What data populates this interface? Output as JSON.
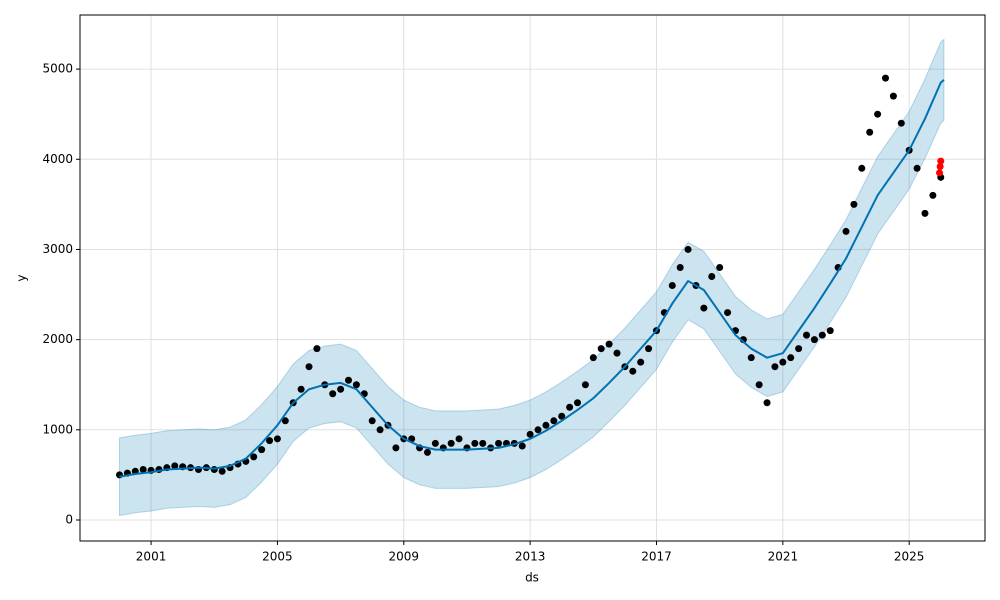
{
  "chart_data": {
    "type": "forecast",
    "xlabel": "ds",
    "ylabel": "y",
    "xlim": [
      1998.75,
      2027.4
    ],
    "ylim": [
      -233,
      5600
    ],
    "xticks": [
      2001,
      2005,
      2009,
      2013,
      2017,
      2021,
      2025
    ],
    "yticks": [
      0,
      1000,
      2000,
      3000,
      4000,
      5000
    ],
    "grid": true,
    "forecast": {
      "color": "#0072b2",
      "band_color": "#0072b2",
      "x": [
        2000,
        2000.5,
        2001,
        2001.5,
        2002,
        2002.5,
        2003,
        2003.5,
        2004,
        2004.5,
        2005,
        2005.5,
        2006,
        2006.5,
        2007,
        2007.5,
        2008,
        2008.5,
        2009,
        2009.5,
        2010,
        2010.5,
        2011,
        2011.5,
        2012,
        2012.5,
        2013,
        2013.5,
        2014,
        2014.5,
        2015,
        2015.5,
        2016,
        2016.5,
        2017,
        2017.5,
        2018,
        2018.5,
        2019,
        2019.5,
        2020,
        2020.5,
        2021,
        2021.5,
        2022,
        2022.5,
        2023,
        2023.5,
        2024,
        2024.5,
        2025,
        2025.5,
        2026,
        2026.1
      ],
      "values": [
        480,
        510,
        530,
        560,
        570,
        580,
        570,
        600,
        680,
        850,
        1050,
        1300,
        1450,
        1500,
        1520,
        1450,
        1250,
        1050,
        900,
        820,
        780,
        780,
        780,
        790,
        800,
        840,
        900,
        990,
        1100,
        1220,
        1350,
        1520,
        1700,
        1900,
        2100,
        2400,
        2650,
        2550,
        2300,
        2050,
        1900,
        1800,
        1850,
        2100,
        2350,
        2620,
        2900,
        3250,
        3600,
        3850,
        4100,
        4450,
        4850,
        4880
      ],
      "lower": [
        50,
        80,
        100,
        130,
        140,
        150,
        140,
        170,
        250,
        420,
        620,
        870,
        1020,
        1070,
        1090,
        1020,
        820,
        620,
        470,
        390,
        350,
        350,
        350,
        360,
        370,
        410,
        470,
        560,
        670,
        790,
        920,
        1090,
        1270,
        1470,
        1670,
        1970,
        2220,
        2120,
        1870,
        1620,
        1470,
        1370,
        1420,
        1670,
        1920,
        2190,
        2470,
        2820,
        3170,
        3420,
        3670,
        4010,
        4400,
        4430
      ],
      "upper": [
        910,
        940,
        960,
        990,
        1000,
        1010,
        1000,
        1030,
        1110,
        1280,
        1480,
        1730,
        1880,
        1930,
        1950,
        1880,
        1680,
        1480,
        1330,
        1250,
        1210,
        1210,
        1210,
        1220,
        1230,
        1270,
        1330,
        1420,
        1530,
        1650,
        1780,
        1950,
        2130,
        2330,
        2530,
        2830,
        3080,
        2980,
        2730,
        2480,
        2330,
        2230,
        2280,
        2530,
        2780,
        3050,
        3330,
        3680,
        4030,
        4280,
        4530,
        4890,
        5300,
        5330
      ]
    },
    "points": {
      "color": "#000000",
      "x": [
        2000,
        2000.25,
        2000.5,
        2000.75,
        2001,
        2001.25,
        2001.5,
        2001.75,
        2002,
        2002.25,
        2002.5,
        2002.75,
        2003,
        2003.25,
        2003.5,
        2003.75,
        2004,
        2004.25,
        2004.5,
        2004.75,
        2005,
        2005.25,
        2005.5,
        2005.75,
        2006,
        2006.25,
        2006.5,
        2006.75,
        2007,
        2007.25,
        2007.5,
        2007.75,
        2008,
        2008.25,
        2008.5,
        2008.75,
        2009,
        2009.25,
        2009.5,
        2009.75,
        2010,
        2010.25,
        2010.5,
        2010.75,
        2011,
        2011.25,
        2011.5,
        2011.75,
        2012,
        2012.25,
        2012.5,
        2012.75,
        2013,
        2013.25,
        2013.5,
        2013.75,
        2014,
        2014.25,
        2014.5,
        2014.75,
        2015,
        2015.25,
        2015.5,
        2015.75,
        2016,
        2016.25,
        2016.5,
        2016.75,
        2017,
        2017.25,
        2017.5,
        2017.75,
        2018,
        2018.25,
        2018.5,
        2018.75,
        2019,
        2019.25,
        2019.5,
        2019.75,
        2020,
        2020.25,
        2020.5,
        2020.75,
        2021,
        2021.25,
        2021.5,
        2021.75,
        2022,
        2022.25,
        2022.5,
        2022.75,
        2023,
        2023.25,
        2023.5,
        2023.75,
        2024,
        2024.25,
        2024.5,
        2024.75,
        2025,
        2025.25,
        2025.5,
        2025.75,
        2026
      ],
      "y": [
        500,
        520,
        540,
        560,
        550,
        560,
        580,
        600,
        590,
        580,
        560,
        580,
        560,
        540,
        580,
        620,
        650,
        700,
        780,
        880,
        900,
        1100,
        1300,
        1450,
        1700,
        1900,
        1500,
        1400,
        1450,
        1550,
        1500,
        1400,
        1100,
        1000,
        1050,
        800,
        900,
        900,
        800,
        750,
        850,
        800,
        850,
        900,
        800,
        850,
        850,
        800,
        850,
        850,
        850,
        820,
        950,
        1000,
        1050,
        1100,
        1150,
        1250,
        1300,
        1500,
        1800,
        1900,
        1950,
        1850,
        1700,
        1650,
        1750,
        1900,
        2100,
        2300,
        2600,
        2800,
        3000,
        2600,
        2350,
        2700,
        2800,
        2300,
        2100,
        2000,
        1800,
        1500,
        1300,
        1700,
        1750,
        1800,
        1900,
        2050,
        2000,
        2050,
        2100,
        2800,
        3200,
        3500,
        3900,
        4300,
        4500,
        4900,
        4700,
        4400,
        4100,
        3900,
        3400,
        3600,
        3800
      ]
    },
    "new_points": {
      "color": "#ff0000",
      "x": [
        2025.96,
        2025.98,
        2026.0
      ],
      "y": [
        3850,
        3920,
        3980
      ]
    }
  }
}
